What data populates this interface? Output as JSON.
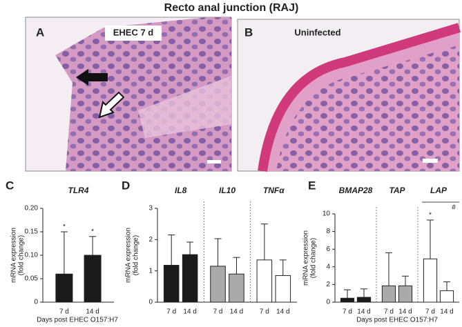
{
  "title": "Recto anal junction (RAJ)",
  "panels": [
    {
      "letter": "A",
      "label": "EHEC 7 d"
    },
    {
      "letter": "B",
      "label": "Uninfected"
    }
  ],
  "chart_data": [
    {
      "type": "bar",
      "letter": "C",
      "ylabel": [
        "mRNA expression",
        "(fold change)"
      ],
      "xlabel": "Days post EHEC O157:H7",
      "ylim": [
        0,
        0.2
      ],
      "yticks": [
        0,
        0.05,
        {
          "value": 0.1,
          "label": "0.10"
        },
        0.15,
        {
          "value": 0.2,
          "label": "0.20"
        }
      ],
      "groups": [
        {
          "name": "TLR4",
          "color": "#1a1a1a",
          "categories": [
            "7 d",
            "14 d"
          ],
          "values": [
            0.06,
            0.1
          ],
          "errors": [
            0.09,
            0.04
          ],
          "marks": [
            "*",
            "*"
          ]
        }
      ]
    },
    {
      "type": "bar",
      "letter": "D",
      "ylabel": [
        "mRNA expression",
        "(fold change)"
      ],
      "ylim": [
        0,
        3
      ],
      "yticks": [
        0,
        1,
        2,
        3
      ],
      "groups": [
        {
          "name": "IL8",
          "color": "#1a1a1a",
          "categories": [
            "7 d",
            "14 d"
          ],
          "values": [
            1.18,
            1.52
          ],
          "errors": [
            0.97,
            0.4
          ]
        },
        {
          "name": "IL10",
          "color": "#aaaaaa",
          "categories": [
            "7 d",
            "14 d"
          ],
          "values": [
            1.15,
            0.9
          ],
          "errors": [
            0.88,
            0.53
          ]
        },
        {
          "name": "TNFα",
          "color": "#ffffff",
          "categories": [
            "7 d",
            "14 d"
          ],
          "values": [
            1.35,
            0.85
          ],
          "errors": [
            1.15,
            0.5
          ]
        }
      ]
    },
    {
      "type": "bar",
      "letter": "E",
      "ylabel": [
        "mRNA expression",
        "(fold change)"
      ],
      "xlabel": "Days post EHEC O157:H7",
      "ylim": [
        0,
        10
      ],
      "yticks": [
        0,
        2,
        4,
        6,
        8,
        10
      ],
      "groups": [
        {
          "name": "BMAP28",
          "color": "#1a1a1a",
          "categories": [
            "7 d",
            "14 d"
          ],
          "values": [
            0.45,
            0.55
          ],
          "errors": [
            0.95,
            0.95
          ]
        },
        {
          "name": "TAP",
          "color": "#aaaaaa",
          "categories": [
            "7 d",
            "14 d"
          ],
          "values": [
            1.85,
            1.85
          ],
          "errors": [
            3.75,
            1.1
          ]
        },
        {
          "name": "LAP",
          "color": "#ffffff",
          "categories": [
            "7 d",
            "14 d"
          ],
          "values": [
            4.9,
            1.3
          ],
          "errors": [
            4.4,
            1.0
          ],
          "marks": [
            "*",
            null
          ],
          "group_mark": "#"
        }
      ]
    }
  ]
}
